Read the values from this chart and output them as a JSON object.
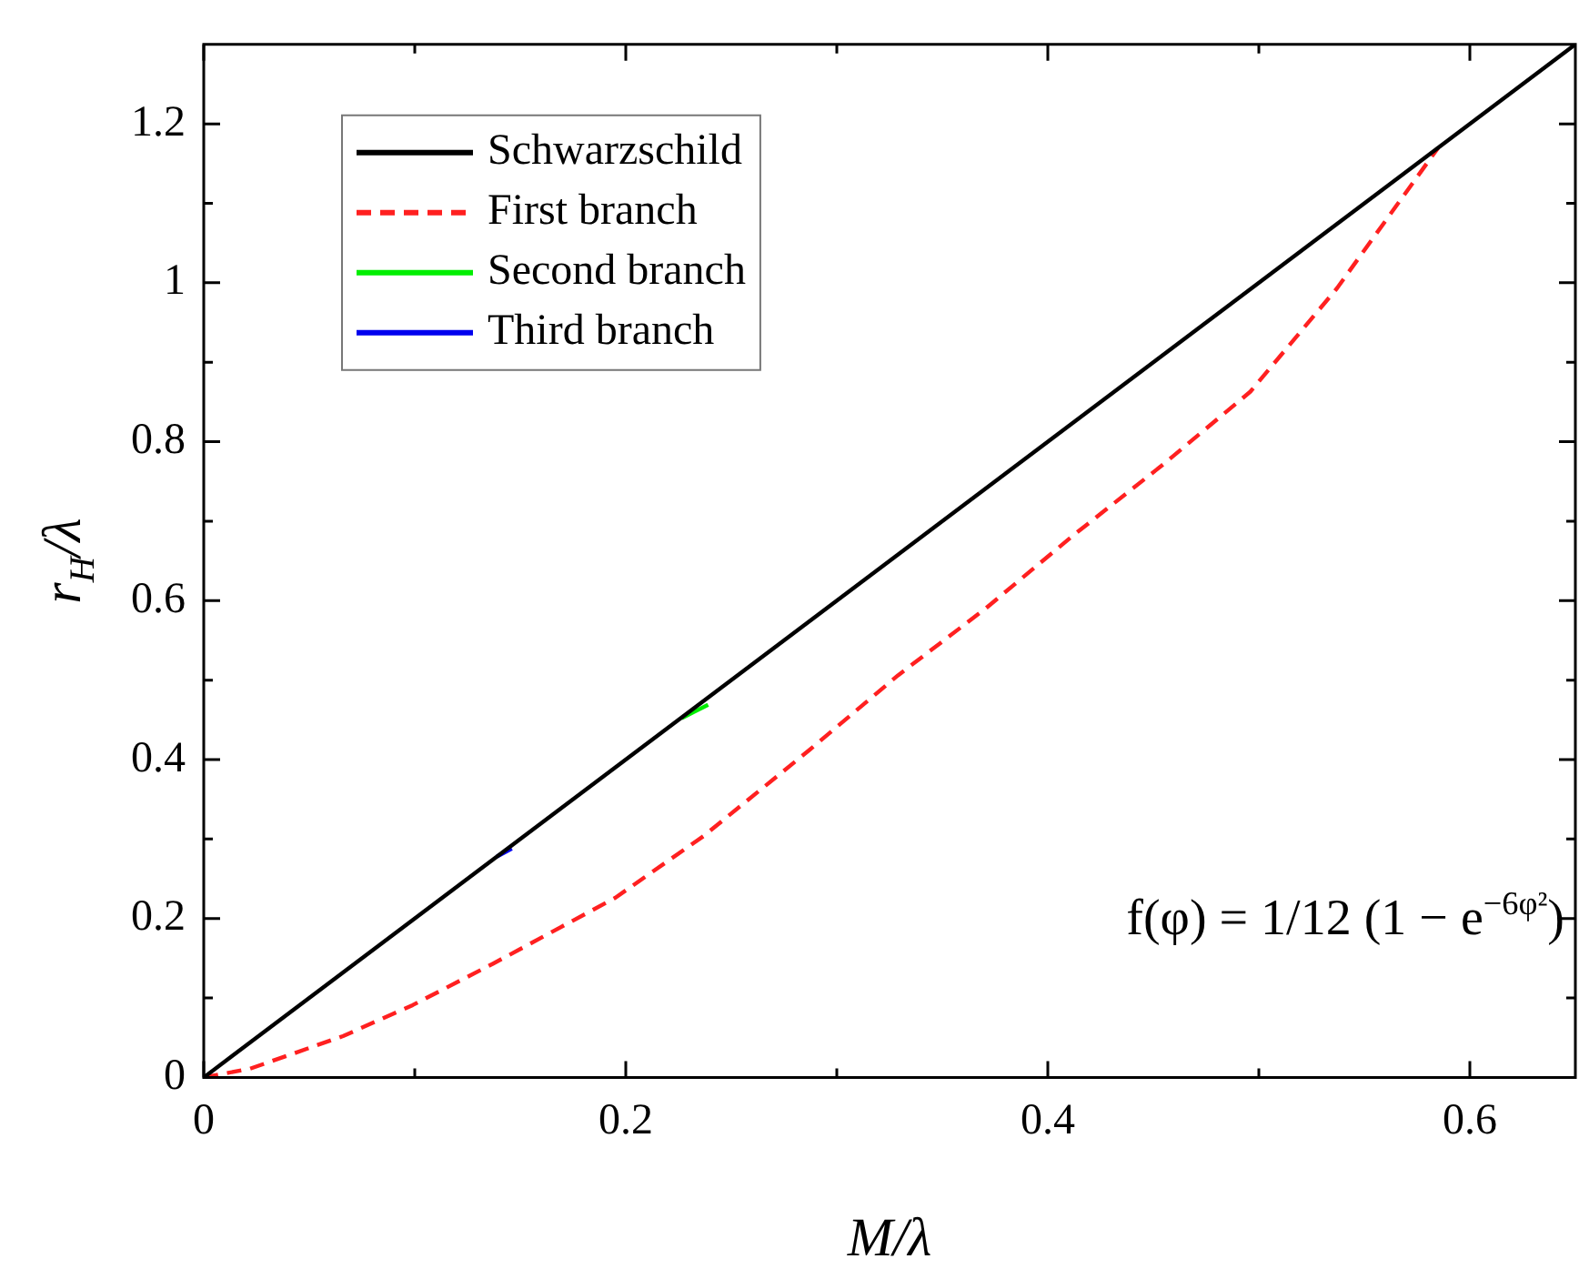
{
  "chart_data": {
    "type": "line",
    "xlabel": "M/λ",
    "ylabel": "r$_{H}$/λ",
    "xlim": [
      0,
      0.65
    ],
    "ylim": [
      0,
      1.3
    ],
    "xticks": [
      0,
      {
        "value": 0.1,
        "label": null
      },
      0.2,
      {
        "value": 0.3,
        "label": null
      },
      0.4,
      {
        "value": 0.5,
        "label": null
      },
      0.6
    ],
    "yticks": [
      0,
      {
        "value": 0.1,
        "label": null
      },
      0.2,
      {
        "value": 0.3,
        "label": null
      },
      0.4,
      {
        "value": 0.5,
        "label": null
      },
      0.6,
      {
        "value": 0.7,
        "label": null
      },
      0.8,
      {
        "value": 0.9,
        "label": null
      },
      1,
      {
        "value": 1.1,
        "label": null
      },
      1.2
    ],
    "grid": false,
    "legend": "top left",
    "annotations": [
      "f(φ) = 1/12 (1 − e$^{−6φ²}$)"
    ],
    "series": [
      {
        "name": "Schwarzschild",
        "color": "#000000",
        "line_style": "solid",
        "x": [
          0,
          0.65
        ],
        "values": [
          0,
          1.3
        ]
      },
      {
        "name": "First branch",
        "color": "#ff2020",
        "line_style": "dashed",
        "x": [
          0,
          0.022,
          0.066,
          0.099,
          0.137,
          0.195,
          0.237,
          0.287,
          0.329,
          0.37,
          0.412,
          0.454,
          0.496,
          0.537,
          0.585
        ],
        "values": [
          0,
          0.011,
          0.052,
          0.091,
          0.143,
          0.226,
          0.304,
          0.412,
          0.506,
          0.589,
          0.682,
          0.77,
          0.863,
          0.993,
          1.17
        ]
      },
      {
        "name": "Second branch",
        "color": "#00ee00",
        "line_style": "solid",
        "x": [
          0.2265,
          0.239
        ],
        "values": [
          0.452,
          0.469
        ]
      },
      {
        "name": "Third branch",
        "color": "#0000ee",
        "line_style": "solid",
        "x": [
          0.139,
          0.146
        ],
        "values": [
          0.278,
          0.288
        ]
      }
    ]
  }
}
